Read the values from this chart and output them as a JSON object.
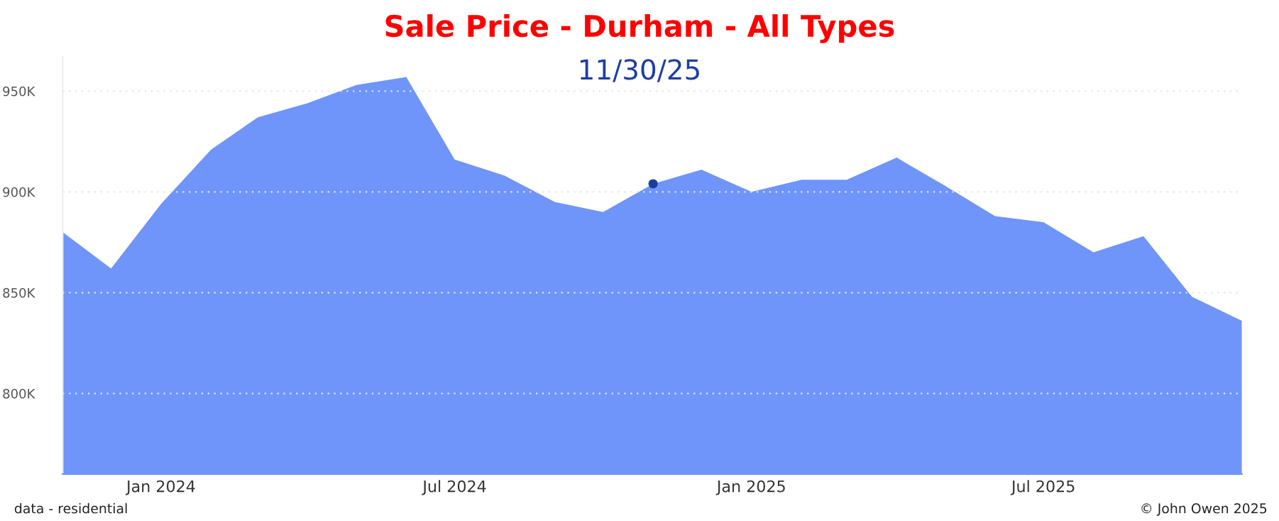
{
  "chart_data": {
    "type": "area",
    "title": "Sale Price - Durham - All Types",
    "subtitle": "11/30/25",
    "annotations": [
      "data - residential",
      "© John Owen 2025"
    ],
    "series": [
      {
        "color": "#6f95fb",
        "x": [
          "2023-11",
          "2023-12",
          "2024-01",
          "2024-02",
          "2024-03",
          "2024-04",
          "2024-05",
          "2024-06",
          "2024-07",
          "2024-08",
          "2024-09",
          "2024-10",
          "2024-11",
          "2024-12",
          "2025-01",
          "2025-02",
          "2025-03",
          "2025-04",
          "2025-05",
          "2025-06",
          "2025-07",
          "2025-08",
          "2025-09",
          "2025-10",
          "2025-11"
        ],
        "values": [
          880000,
          862000,
          894000,
          921000,
          937000,
          944000,
          953000,
          957000,
          916000,
          908000,
          895000,
          890000,
          904000,
          911000,
          900000,
          906000,
          906000,
          917000,
          903000,
          888000,
          885000,
          870000,
          878000,
          848000,
          836000
        ]
      },
      {
        "type": "scatter",
        "color": "#1a3ea0",
        "x": [
          "2024-11"
        ],
        "values": [
          904000
        ]
      }
    ],
    "xlim": [
      "2023-11",
      "2025-11"
    ],
    "xticks": [
      {
        "value": "2024-01",
        "label": "Jan 2024"
      },
      {
        "value": "2024-07",
        "label": "Jul 2024"
      },
      {
        "value": "2025-01",
        "label": "Jan 2025"
      },
      {
        "value": "2025-07",
        "label": "Jul 2025"
      }
    ],
    "ylim": [
      760000,
      967000
    ],
    "yticks": [
      {
        "value": 800000,
        "label": "800K"
      },
      {
        "value": 850000,
        "label": "850K"
      },
      {
        "value": 900000,
        "label": "900K"
      },
      {
        "value": 950000,
        "label": "950K"
      }
    ],
    "grid": "y",
    "legend": false
  }
}
